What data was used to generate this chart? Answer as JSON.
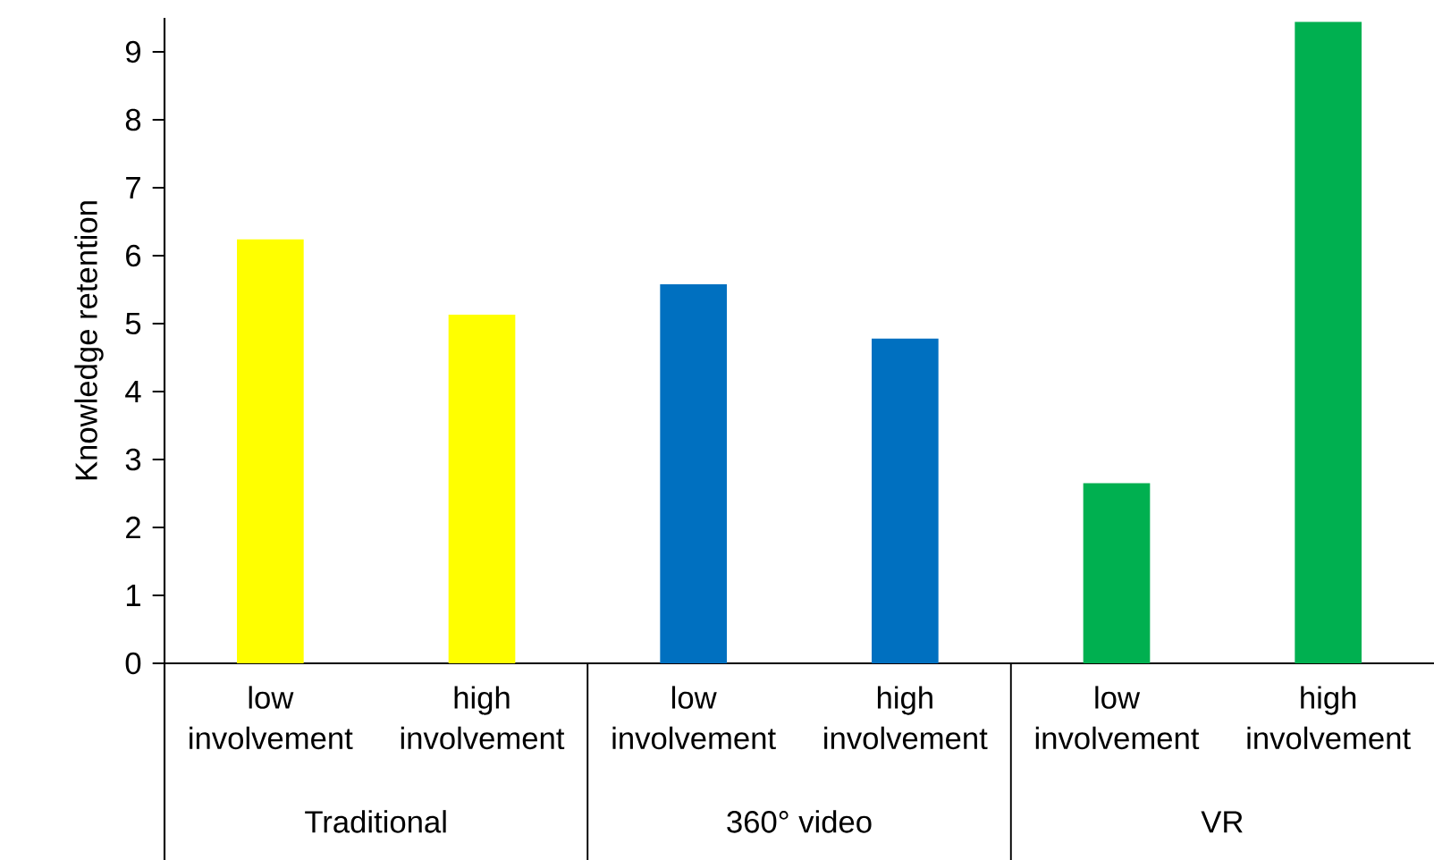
{
  "chart_data": {
    "type": "bar",
    "ylabel": "Knowledge retention",
    "categories": [
      "low involvement",
      "high involvement",
      "low involvement",
      "high involvement",
      "low involvement",
      "high involvement"
    ],
    "values": [
      6.24,
      5.13,
      5.58,
      4.78,
      2.65,
      9.44
    ],
    "colors": [
      "#ffff00",
      "#ffff00",
      "#0070c0",
      "#0070c0",
      "#00b050",
      "#00b050"
    ],
    "annotations": [
      "Traditional",
      "360° video",
      "VR"
    ],
    "ylim": [
      0,
      9.5
    ],
    "yticks": [
      0,
      1,
      2,
      3,
      4,
      5,
      6,
      7,
      8,
      9
    ]
  }
}
